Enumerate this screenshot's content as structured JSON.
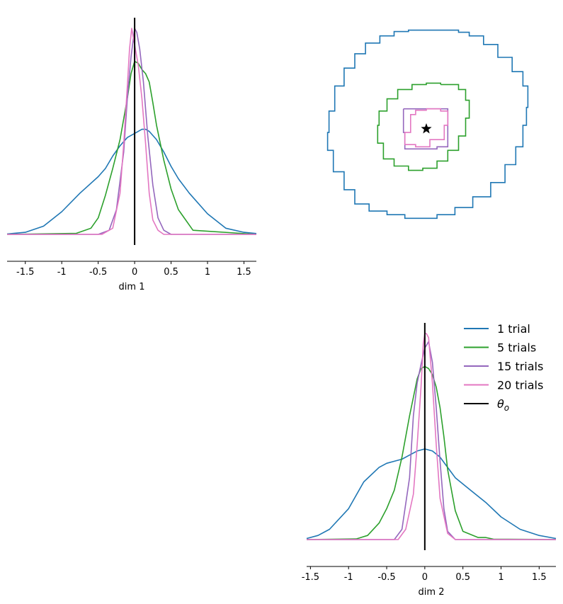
{
  "chart_data": [
    {
      "panel": "dim1-marginal",
      "type": "line",
      "xlabel": "dim 1",
      "xlim": [
        -1.75,
        1.67
      ],
      "xticks": [
        -1.5,
        -1,
        -0.5,
        0,
        0.5,
        1,
        1.5
      ],
      "xtick_labels": [
        "-1.5",
        "-1",
        "-0.5",
        "0",
        "0.5",
        "1",
        "1.5"
      ],
      "true_value": 0,
      "series": [
        {
          "name": "1 trial",
          "color": "#1f77b4",
          "x": [
            -1.75,
            -1.5,
            -1.25,
            -1,
            -0.75,
            -0.5,
            -0.4,
            -0.3,
            -0.2,
            -0.1,
            0,
            0.1,
            0.15,
            0.2,
            0.3,
            0.4,
            0.5,
            0.6,
            0.75,
            1,
            1.25,
            1.5,
            1.67
          ],
          "y": [
            0.002,
            0.01,
            0.04,
            0.11,
            0.2,
            0.28,
            0.32,
            0.38,
            0.43,
            0.47,
            0.49,
            0.51,
            0.51,
            0.5,
            0.46,
            0.4,
            0.33,
            0.27,
            0.2,
            0.1,
            0.03,
            0.01,
            0.004
          ]
        },
        {
          "name": "5 trials",
          "color": "#2ca02c",
          "x": [
            -1.75,
            -0.8,
            -0.6,
            -0.5,
            -0.4,
            -0.3,
            -0.2,
            -0.1,
            -0.05,
            0,
            0.05,
            0.1,
            0.15,
            0.2,
            0.25,
            0.3,
            0.4,
            0.5,
            0.6,
            0.8,
            1.67
          ],
          "y": [
            0,
            0.005,
            0.03,
            0.08,
            0.19,
            0.32,
            0.46,
            0.66,
            0.78,
            0.84,
            0.83,
            0.8,
            0.78,
            0.74,
            0.64,
            0.53,
            0.36,
            0.22,
            0.12,
            0.02,
            0
          ]
        },
        {
          "name": "15 trials",
          "color": "#9467bd",
          "x": [
            -1.75,
            -0.5,
            -0.35,
            -0.25,
            -0.15,
            -0.1,
            -0.05,
            0,
            0.03,
            0.07,
            0.12,
            0.18,
            0.25,
            0.32,
            0.4,
            0.5,
            1.67
          ],
          "y": [
            0,
            0,
            0.02,
            0.12,
            0.4,
            0.66,
            0.86,
            1.0,
            0.98,
            0.9,
            0.74,
            0.48,
            0.24,
            0.08,
            0.02,
            0,
            0
          ]
        },
        {
          "name": "20 trials",
          "color": "#e377c2",
          "x": [
            -1.75,
            -0.45,
            -0.3,
            -0.2,
            -0.15,
            -0.1,
            -0.07,
            -0.04,
            0,
            0.05,
            0.1,
            0.15,
            0.2,
            0.25,
            0.32,
            0.4,
            1.67
          ],
          "y": [
            0,
            0,
            0.03,
            0.2,
            0.44,
            0.72,
            0.9,
            1.0,
            0.92,
            0.82,
            0.66,
            0.44,
            0.2,
            0.07,
            0.02,
            0,
            0
          ]
        }
      ]
    },
    {
      "panel": "joint-contours",
      "type": "line",
      "xlim": [
        -1.75,
        1.67
      ],
      "ylim": [
        -1.75,
        1.67
      ],
      "true_point": [
        0,
        0
      ],
      "series": [
        {
          "name": "1 trial",
          "color": "#1f77b4",
          "x": [
            -0.05,
            0.22,
            0.45,
            0.6,
            0.8,
            1.0,
            1.2,
            1.35,
            1.42,
            1.4,
            1.35,
            1.25,
            1.1,
            0.9,
            0.65,
            0.4,
            0.15,
            -0.1,
            -0.3,
            -0.55,
            -0.8,
            -1.0,
            -1.15,
            -1.3,
            -1.38,
            -1.36,
            -1.28,
            -1.15,
            -1.0,
            -0.85,
            -0.65,
            -0.45,
            -0.25,
            -0.05
          ],
          "y": [
            1.38,
            1.38,
            1.35,
            1.3,
            1.18,
            1.0,
            0.8,
            0.6,
            0.3,
            0.05,
            -0.25,
            -0.5,
            -0.75,
            -0.95,
            -1.1,
            -1.2,
            -1.25,
            -1.25,
            -1.2,
            -1.15,
            -1.05,
            -0.85,
            -0.6,
            -0.3,
            -0.05,
            0.25,
            0.6,
            0.85,
            1.05,
            1.2,
            1.3,
            1.36,
            1.38,
            1.38
          ]
        },
        {
          "name": "5 trials",
          "color": "#2ca02c",
          "x": [
            0.2,
            0.45,
            0.55,
            0.6,
            0.55,
            0.45,
            0.3,
            0.15,
            -0.05,
            -0.25,
            -0.45,
            -0.6,
            -0.68,
            -0.66,
            -0.55,
            -0.4,
            -0.2,
            0.0,
            0.2
          ],
          "y": [
            0.62,
            0.55,
            0.4,
            0.15,
            -0.1,
            -0.3,
            -0.45,
            -0.55,
            -0.58,
            -0.52,
            -0.42,
            -0.2,
            0.05,
            0.25,
            0.42,
            0.55,
            0.62,
            0.64,
            0.62
          ]
        },
        {
          "name": "15 trials",
          "color": "#9467bd",
          "x": [
            -0.32,
            0.3,
            0.3,
            0.15,
            -0.1,
            -0.3,
            -0.32
          ],
          "y": [
            0.28,
            0.28,
            -0.25,
            -0.28,
            -0.28,
            -0.05,
            0.28
          ]
        },
        {
          "name": "20 trials",
          "color": "#e377c2",
          "x": [
            0.0,
            0.2,
            0.3,
            0.25,
            0.05,
            -0.15,
            -0.3,
            -0.22,
            -0.15,
            0.0
          ],
          "y": [
            0.28,
            0.25,
            0.05,
            -0.15,
            -0.25,
            -0.22,
            -0.05,
            0.2,
            0.26,
            0.28
          ]
        }
      ]
    },
    {
      "panel": "dim2-marginal",
      "type": "line",
      "xlabel": "dim 2",
      "xlim": [
        -1.55,
        1.72
      ],
      "xticks": [
        -1.5,
        -1,
        -0.5,
        0,
        0.5,
        1,
        1.5
      ],
      "xtick_labels": [
        "-1.5",
        "-1",
        "-0.5",
        "0",
        "0.5",
        "1",
        "1.5"
      ],
      "true_value": 0,
      "series": [
        {
          "name": "1 trial",
          "color": "#1f77b4",
          "x": [
            -1.55,
            -1.4,
            -1.25,
            -1,
            -0.8,
            -0.6,
            -0.5,
            -0.4,
            -0.3,
            -0.2,
            -0.1,
            0,
            0.1,
            0.2,
            0.3,
            0.4,
            0.6,
            0.8,
            1.0,
            1.25,
            1.5,
            1.72
          ],
          "y": [
            0.005,
            0.02,
            0.05,
            0.15,
            0.28,
            0.35,
            0.37,
            0.38,
            0.39,
            0.41,
            0.43,
            0.44,
            0.43,
            0.4,
            0.35,
            0.3,
            0.24,
            0.18,
            0.11,
            0.05,
            0.02,
            0.005
          ]
        },
        {
          "name": "5 trials",
          "color": "#2ca02c",
          "x": [
            -1.55,
            -0.9,
            -0.75,
            -0.6,
            -0.5,
            -0.4,
            -0.3,
            -0.2,
            -0.1,
            -0.05,
            0,
            0.05,
            0.1,
            0.15,
            0.2,
            0.25,
            0.3,
            0.4,
            0.5,
            0.7,
            0.8,
            0.9,
            1.72
          ],
          "y": [
            0,
            0.003,
            0.02,
            0.08,
            0.15,
            0.24,
            0.4,
            0.6,
            0.78,
            0.83,
            0.84,
            0.83,
            0.8,
            0.74,
            0.64,
            0.5,
            0.34,
            0.14,
            0.04,
            0.01,
            0.01,
            0.002,
            0
          ]
        },
        {
          "name": "15 trials",
          "color": "#9467bd",
          "x": [
            -1.55,
            -0.4,
            -0.3,
            -0.2,
            -0.15,
            -0.1,
            -0.05,
            0,
            0.05,
            0.1,
            0.15,
            0.2,
            0.25,
            0.3,
            0.4,
            1.72
          ],
          "y": [
            0,
            0,
            0.05,
            0.3,
            0.6,
            0.76,
            0.85,
            0.93,
            0.96,
            0.86,
            0.64,
            0.38,
            0.15,
            0.04,
            0,
            0
          ]
        },
        {
          "name": "20 trials",
          "color": "#e377c2",
          "x": [
            -1.55,
            -0.35,
            -0.25,
            -0.15,
            -0.1,
            -0.05,
            -0.02,
            0,
            0.02,
            0.05,
            0.1,
            0.15,
            0.2,
            0.3,
            0.4,
            1.72
          ],
          "y": [
            0,
            0,
            0.05,
            0.22,
            0.46,
            0.74,
            0.95,
            1.0,
            1.0,
            0.98,
            0.76,
            0.46,
            0.2,
            0.03,
            0,
            0
          ]
        }
      ]
    }
  ],
  "legend": [
    {
      "label": "1 trial",
      "color": "#1f77b4"
    },
    {
      "label": "5 trials",
      "color": "#2ca02c"
    },
    {
      "label": "15 trials",
      "color": "#9467bd"
    },
    {
      "label": "20 trials",
      "color": "#e377c2"
    },
    {
      "label": "θ",
      "sub": "o",
      "color": "#000000"
    }
  ]
}
